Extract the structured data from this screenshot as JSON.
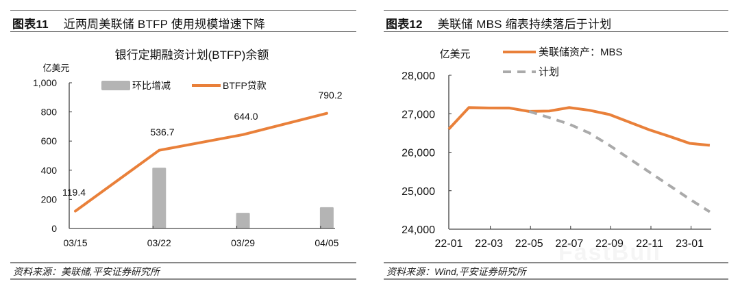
{
  "left_panel": {
    "figure_number": "图表11",
    "figure_title": "近两周美联储 BTFP 使用规模增速下降",
    "source": "资料来源：美联储,平安证券研究所"
  },
  "right_panel": {
    "figure_number": "图表12",
    "figure_title": "美联储 MBS 缩表持续落后于计划",
    "source": "资料来源：Wind,平安证券研究所"
  },
  "watermark": "FastBull",
  "colors": {
    "orange": "#E9803A",
    "gray_bar": "#B4B4B4",
    "gray_dash": "#AAAAAA",
    "axis": "#333333"
  },
  "chart_data": [
    {
      "type": "bar+line",
      "title": "银行定期融资计划(BTFP)余额",
      "ylabel": "亿美元",
      "xlabel": "",
      "ylim": [
        0,
        1000
      ],
      "yticks": [
        "0",
        "200",
        "400",
        "600",
        "800",
        "1,000"
      ],
      "categories": [
        "03/15",
        "03/22",
        "03/29",
        "04/05"
      ],
      "legend": [
        "环比增减",
        "BTFP贷款"
      ],
      "legend_position": "top",
      "grid": false,
      "series": [
        {
          "name": "环比增减",
          "kind": "bar",
          "values": [
            0,
            417.3,
            107.3,
            146.2
          ]
        },
        {
          "name": "BTFP贷款",
          "kind": "line",
          "values": [
            119.4,
            536.7,
            644.0,
            790.2
          ],
          "labels": [
            "119.4",
            "536.7",
            "644.0",
            "790.2"
          ]
        }
      ]
    },
    {
      "type": "line",
      "title": "",
      "ylabel": "亿美元",
      "xlabel": "",
      "ylim": [
        24000,
        28000
      ],
      "yticks": [
        "24,000",
        "25,000",
        "26,000",
        "27,000",
        "28,000"
      ],
      "x": [
        "22-01",
        "22-02",
        "22-03",
        "22-04",
        "22-05",
        "22-06",
        "22-07",
        "22-08",
        "22-09",
        "22-10",
        "22-11",
        "22-12",
        "23-01",
        "23-02"
      ],
      "xtick_labels": [
        "22-01",
        "22-03",
        "22-05",
        "22-07",
        "22-09",
        "22-11",
        "23-01"
      ],
      "legend": [
        "美联储资产：MBS",
        "计划"
      ],
      "legend_position": "top",
      "grid": false,
      "series": [
        {
          "name": "美联储资产：MBS",
          "style": "solid",
          "values": [
            26600,
            27160,
            27150,
            27150,
            27060,
            27070,
            27160,
            27090,
            26980,
            26780,
            26580,
            26410,
            26230,
            26180
          ]
        },
        {
          "name": "计划",
          "style": "dashed",
          "values": [
            null,
            null,
            null,
            null,
            27060,
            26900,
            26730,
            26500,
            26180,
            25830,
            25480,
            25130,
            24780,
            24450
          ]
        }
      ]
    }
  ]
}
